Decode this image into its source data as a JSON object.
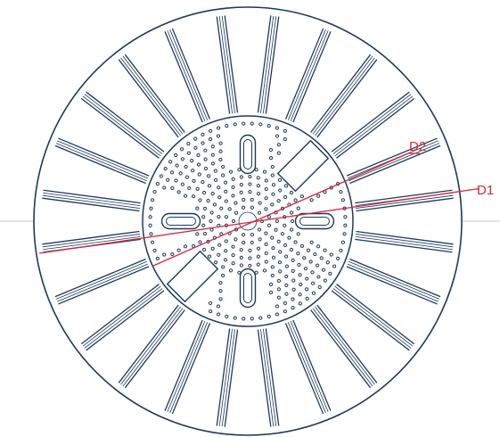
{
  "colors": {
    "outline": "#1d3a5c",
    "accent": "#d42a3a",
    "guide": "#c8c8c8",
    "background": "#ffffff"
  },
  "labels": {
    "d1": "D1",
    "d2": "D2"
  },
  "drawing": {
    "rib_count": 24,
    "vent_slot_count": 4,
    "rectangular_cutout_count": 2
  }
}
